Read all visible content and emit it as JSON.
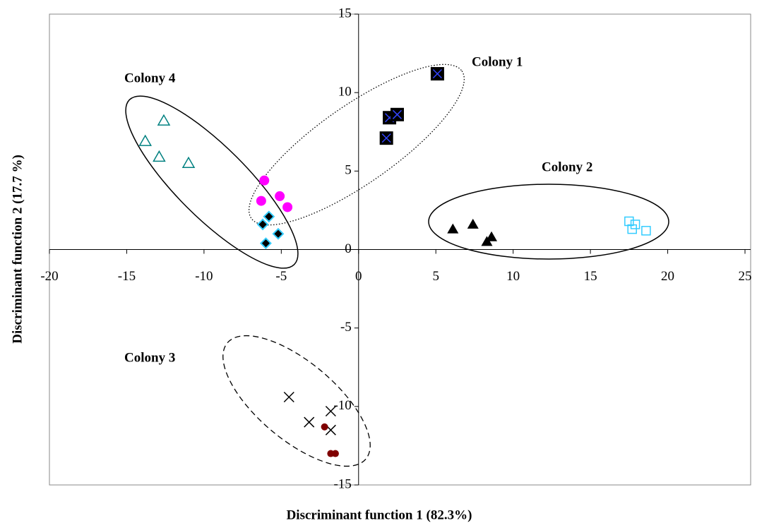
{
  "chart_data": {
    "type": "scatter",
    "x_label": "Discriminant function 1 (82.3%)",
    "y_label": "Discriminant function 2 (17.7 %)",
    "xlim": [
      -20,
      25
    ],
    "xticks": [
      -20,
      -15,
      -10,
      -5,
      0,
      5,
      10,
      15,
      20,
      25
    ],
    "ylim": [
      -15,
      15
    ],
    "yticks": [
      -15,
      -10,
      -5,
      0,
      5,
      10,
      15
    ],
    "annotations": [
      "Colony 1",
      "Colony 2",
      "Colony 3",
      "Colony 4"
    ],
    "series": [
      {
        "marker": "square-x",
        "color": "#000000",
        "x": [
          5.1,
          2.0,
          2.5,
          1.8
        ],
        "values": [
          11.2,
          8.4,
          8.6,
          7.1
        ]
      },
      {
        "marker": "triangle",
        "color": "#000000",
        "x": [
          6.1,
          7.4,
          8.6,
          8.3
        ],
        "values": [
          1.3,
          1.6,
          0.8,
          0.5
        ]
      },
      {
        "marker": "open-square",
        "color": "#33ccff",
        "x": [
          17.5,
          17.7,
          17.9,
          18.6
        ],
        "values": [
          1.8,
          1.3,
          1.6,
          1.2
        ]
      },
      {
        "marker": "x",
        "color": "#000000",
        "x": [
          -4.5,
          -3.2,
          -1.8,
          -1.8
        ],
        "values": [
          -9.4,
          -11.0,
          -10.3,
          -11.5
        ]
      },
      {
        "marker": "circle-small",
        "color": "#800000",
        "x": [
          -2.2,
          -1.8,
          -1.5
        ],
        "values": [
          -11.3,
          -13.0,
          -13.0
        ]
      },
      {
        "marker": "open-triangle",
        "color": "#008080",
        "x": [
          -13.8,
          -12.6,
          -12.9,
          -11.0
        ],
        "values": [
          6.9,
          8.2,
          5.9,
          5.5
        ]
      },
      {
        "marker": "circle",
        "color": "#ff00ff",
        "x": [
          -6.1,
          -6.3,
          -5.1,
          -4.6
        ],
        "values": [
          4.4,
          3.1,
          3.4,
          2.7
        ]
      },
      {
        "marker": "diamond",
        "color": "#33ccff",
        "x": [
          -6.2,
          -5.8,
          -5.2,
          -6.0
        ],
        "values": [
          1.6,
          2.1,
          1.0,
          0.4
        ]
      }
    ]
  }
}
